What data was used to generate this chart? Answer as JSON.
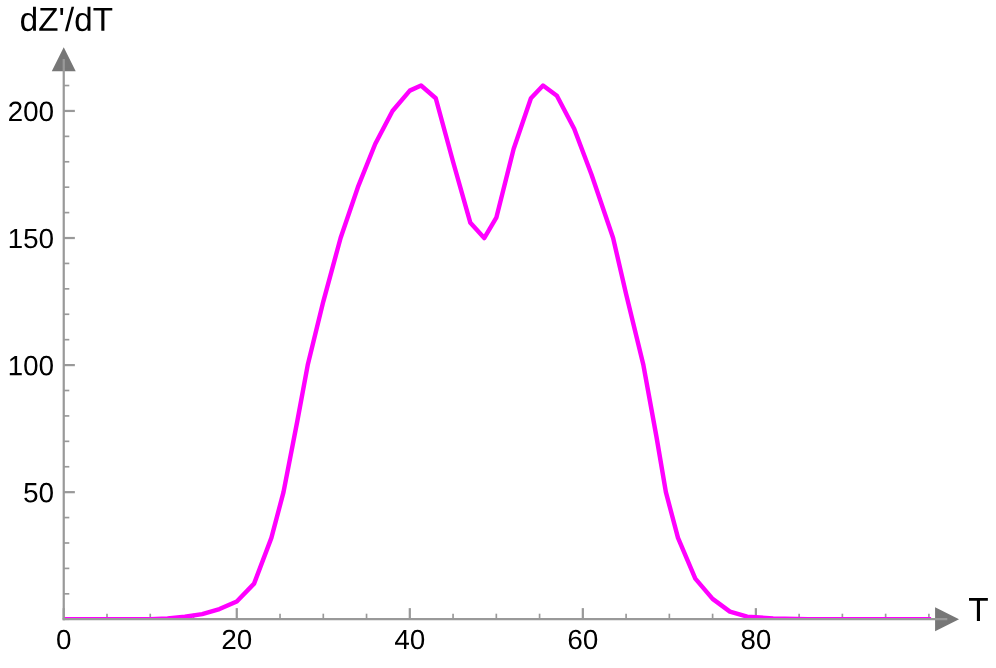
{
  "chart_data": {
    "type": "line",
    "xlabel": "T",
    "ylabel": "dZ'/dT",
    "x": [
      0,
      5,
      10,
      12,
      14,
      16,
      18,
      20,
      22,
      24,
      25.4,
      27,
      28.2,
      30,
      32,
      34,
      36,
      38,
      40,
      41.3,
      43,
      45,
      47,
      48.6,
      50,
      52,
      54,
      55.4,
      57,
      59,
      61,
      63.5,
      65,
      67,
      68.5,
      69.6,
      71,
      73,
      75,
      77,
      79,
      82,
      86,
      90,
      95,
      100
    ],
    "series": [
      {
        "color": "#ff00ff",
        "values": [
          0,
          0,
          0,
          0.3,
          1,
          2,
          4,
          7,
          14,
          32,
          50,
          78,
          100,
          125,
          150,
          170,
          187,
          200,
          208,
          210,
          205,
          180,
          156,
          150,
          158,
          185,
          205,
          210,
          206,
          193,
          175,
          150,
          128,
          100,
          72,
          50,
          32,
          16,
          8,
          3,
          1,
          0.3,
          0,
          0,
          0,
          0
        ]
      }
    ],
    "xlim": [
      0,
      102
    ],
    "ylim": [
      0,
      220
    ],
    "xticks": [
      0,
      20,
      40,
      60,
      80
    ],
    "yticks": [
      50,
      100,
      150,
      200
    ],
    "grid": false,
    "legend": false,
    "marker": "none",
    "line_style": "solid"
  }
}
